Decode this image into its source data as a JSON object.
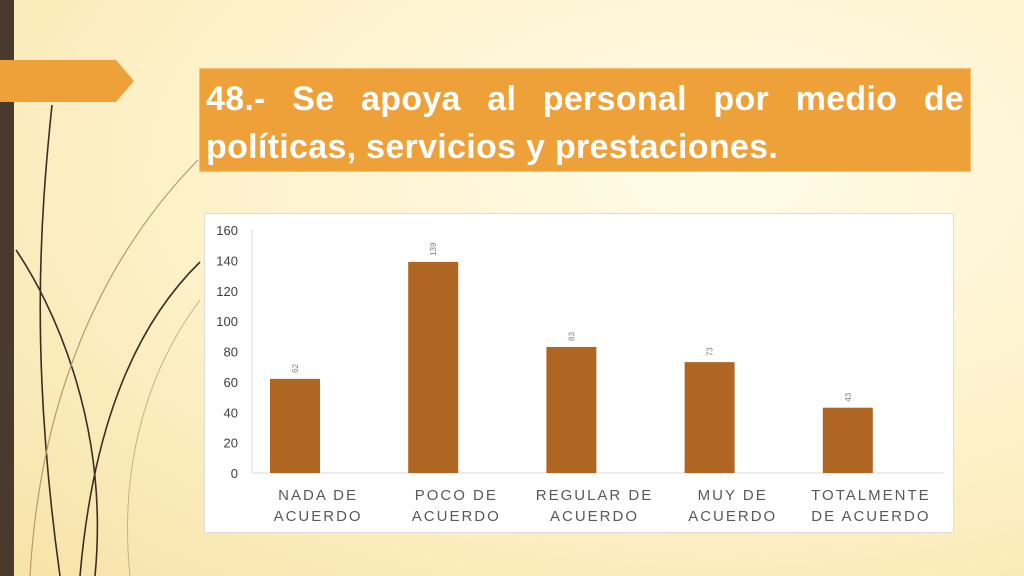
{
  "title": "48.- Se apoya al personal por medio de políticas, servicios y prestaciones.",
  "colors": {
    "bar": "#b06623",
    "title_bg": "#eea138",
    "left_bar": "#4a3a2e",
    "decor_line": "#3d2e22"
  },
  "chart_data": {
    "type": "bar",
    "categories": [
      [
        "NADA DE",
        "ACUERDO"
      ],
      [
        "POCO DE",
        "ACUERDO"
      ],
      [
        "REGULAR DE",
        "ACUERDO"
      ],
      [
        "MUY DE",
        "ACUERDO"
      ],
      [
        "TOTALMENTE",
        "DE ACUERDO"
      ]
    ],
    "values": [
      62,
      139,
      83,
      73,
      43
    ],
    "data_labels": [
      "62",
      "139",
      "83",
      "73",
      "43"
    ],
    "ylim": [
      0,
      160
    ],
    "yticks": [
      "0",
      "20",
      "40",
      "60",
      "80",
      "100",
      "120",
      "140",
      "160"
    ],
    "grid": false,
    "legend": "none"
  }
}
